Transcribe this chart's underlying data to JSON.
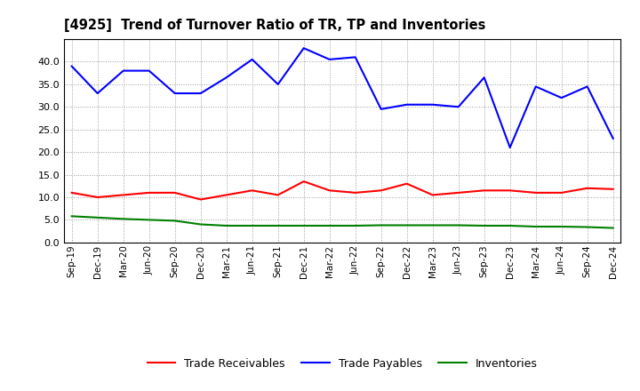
{
  "title": "[4925]  Trend of Turnover Ratio of TR, TP and Inventories",
  "x_labels": [
    "Sep-19",
    "Dec-19",
    "Mar-20",
    "Jun-20",
    "Sep-20",
    "Dec-20",
    "Mar-21",
    "Jun-21",
    "Sep-21",
    "Dec-21",
    "Mar-22",
    "Jun-22",
    "Sep-22",
    "Dec-22",
    "Mar-23",
    "Jun-23",
    "Sep-23",
    "Dec-23",
    "Mar-24",
    "Jun-24",
    "Sep-24",
    "Dec-24"
  ],
  "trade_receivables": [
    11.0,
    10.0,
    10.5,
    11.0,
    11.0,
    9.5,
    10.5,
    11.5,
    10.5,
    13.5,
    11.5,
    11.0,
    11.5,
    13.0,
    10.5,
    11.0,
    11.5,
    11.5,
    11.0,
    11.0,
    12.0,
    11.8
  ],
  "trade_payables": [
    39.0,
    33.0,
    38.0,
    38.0,
    33.0,
    33.0,
    36.5,
    40.5,
    35.0,
    43.0,
    40.5,
    41.0,
    29.5,
    30.5,
    30.5,
    30.0,
    36.5,
    21.0,
    34.5,
    32.0,
    34.5,
    23.0
  ],
  "inventories": [
    5.8,
    5.5,
    5.2,
    5.0,
    4.8,
    4.0,
    3.7,
    3.7,
    3.7,
    3.7,
    3.7,
    3.7,
    3.8,
    3.8,
    3.8,
    3.8,
    3.7,
    3.7,
    3.5,
    3.5,
    3.4,
    3.2
  ],
  "ylim": [
    0.0,
    45.0
  ],
  "yticks": [
    0.0,
    5.0,
    10.0,
    15.0,
    20.0,
    25.0,
    30.0,
    35.0,
    40.0
  ],
  "tr_color": "#ff0000",
  "tp_color": "#0000ff",
  "inv_color": "#008000",
  "legend_labels": [
    "Trade Receivables",
    "Trade Payables",
    "Inventories"
  ],
  "bg_color": "#ffffff",
  "grid_color": "#999999"
}
